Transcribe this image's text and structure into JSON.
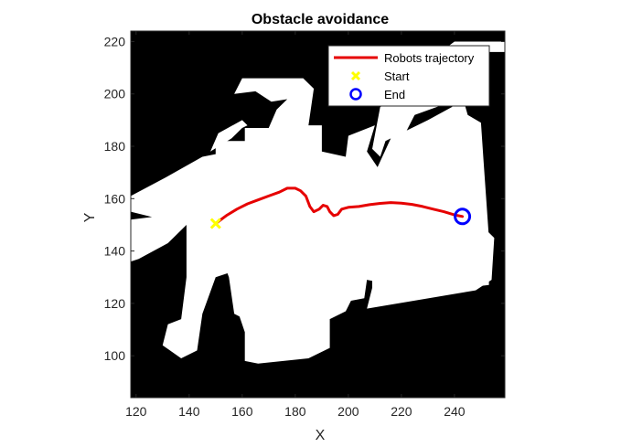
{
  "chart_data": {
    "type": "line",
    "title": "Obstacle avoidance",
    "xlabel": "X",
    "ylabel": "Y",
    "xlim": [
      118,
      259
    ],
    "ylim": [
      84,
      224
    ],
    "xticks": [
      120,
      140,
      160,
      180,
      200,
      220,
      240
    ],
    "yticks": [
      100,
      120,
      140,
      160,
      180,
      200,
      220
    ],
    "grid": false,
    "legend_location": "top-right",
    "background": "occupancy map (black = obstacle, white = free space)",
    "series": [
      {
        "name": "Robots trajectory",
        "kind": "line",
        "color": "#e60000",
        "points": [
          [
            150,
            150.5
          ],
          [
            154,
            153.5
          ],
          [
            158,
            156
          ],
          [
            162,
            158
          ],
          [
            166,
            159.5
          ],
          [
            170,
            161
          ],
          [
            174,
            162.5
          ],
          [
            177,
            164
          ],
          [
            180,
            164
          ],
          [
            182,
            163
          ],
          [
            184,
            161
          ],
          [
            185.5,
            157
          ],
          [
            187,
            155
          ],
          [
            189,
            156
          ],
          [
            190.5,
            157.5
          ],
          [
            192,
            157
          ],
          [
            193,
            155
          ],
          [
            194.5,
            153.5
          ],
          [
            196,
            154
          ],
          [
            197.5,
            156
          ],
          [
            200,
            156.7
          ],
          [
            204,
            157
          ],
          [
            208,
            157.7
          ],
          [
            212,
            158.2
          ],
          [
            216,
            158.5
          ],
          [
            220,
            158.3
          ],
          [
            224,
            157.8
          ],
          [
            228,
            157
          ],
          [
            232,
            156
          ],
          [
            236,
            155
          ],
          [
            240,
            153.8
          ],
          [
            243,
            153.2
          ]
        ]
      },
      {
        "name": "Start",
        "kind": "marker",
        "marker": "x",
        "color": "#ffff00",
        "x": 150,
        "y": 150.5
      },
      {
        "name": "End",
        "kind": "marker",
        "marker": "o",
        "color": "#0000ff",
        "x": 243,
        "y": 153.2
      }
    ],
    "free_space_regions": [
      [
        [
          118,
          161
        ],
        [
          131,
          168
        ],
        [
          145,
          176
        ],
        [
          150,
          177
        ],
        [
          150,
          182
        ],
        [
          161,
          182
        ],
        [
          161,
          187
        ],
        [
          170,
          187
        ],
        [
          173,
          194
        ],
        [
          177,
          198
        ],
        [
          171,
          197
        ],
        [
          165,
          201
        ],
        [
          157,
          200
        ],
        [
          160,
          206
        ],
        [
          183,
          206
        ],
        [
          187,
          202
        ],
        [
          185,
          188
        ],
        [
          190,
          188
        ],
        [
          190,
          178
        ],
        [
          199,
          176
        ],
        [
          200,
          184
        ],
        [
          210,
          188
        ],
        [
          207,
          178
        ],
        [
          211,
          172
        ],
        [
          216,
          183
        ],
        [
          222,
          186
        ],
        [
          225,
          192
        ],
        [
          236,
          196
        ],
        [
          245,
          199
        ],
        [
          243,
          210
        ],
        [
          243,
          216
        ],
        [
          259,
          216
        ],
        [
          259,
          220
        ],
        [
          240,
          220
        ],
        [
          236,
          217
        ],
        [
          228,
          206
        ],
        [
          220,
          200
        ],
        [
          212,
          195
        ],
        [
          209,
          179
        ],
        [
          212,
          176
        ],
        [
          214,
          182
        ],
        [
          222,
          186
        ],
        [
          230,
          190
        ],
        [
          239,
          195
        ],
        [
          243,
          199
        ],
        [
          245,
          192
        ],
        [
          250,
          189
        ],
        [
          251,
          174
        ],
        [
          253,
          145
        ],
        [
          253,
          127
        ],
        [
          236,
          125
        ],
        [
          226,
          128
        ],
        [
          212,
          128
        ],
        [
          207,
          129
        ],
        [
          206,
          122
        ],
        [
          201,
          121
        ],
        [
          199,
          117
        ],
        [
          193,
          114
        ],
        [
          193,
          103
        ],
        [
          185,
          99
        ],
        [
          166,
          97
        ],
        [
          161,
          98
        ],
        [
          161,
          109
        ],
        [
          159,
          115
        ],
        [
          157,
          116
        ],
        [
          155,
          130
        ],
        [
          152,
          138
        ],
        [
          150,
          139
        ],
        [
          150,
          130
        ],
        [
          145,
          116
        ],
        [
          143,
          102
        ],
        [
          137,
          99
        ],
        [
          130,
          104
        ],
        [
          132,
          112
        ],
        [
          137,
          114
        ],
        [
          139,
          130
        ],
        [
          139,
          150
        ],
        [
          132,
          143
        ],
        [
          121,
          137
        ],
        [
          118,
          136
        ],
        [
          118,
          152
        ],
        [
          126,
          153
        ],
        [
          118,
          155
        ]
      ],
      [
        [
          166,
          163
        ],
        [
          238,
          163
        ],
        [
          241,
          152
        ],
        [
          230,
          147
        ],
        [
          212,
          147
        ],
        [
          205,
          145
        ],
        [
          192,
          148
        ],
        [
          185,
          149
        ],
        [
          179,
          150
        ],
        [
          178,
          156
        ],
        [
          173,
          154
        ],
        [
          165,
          157
        ],
        [
          160,
          160
        ]
      ],
      [
        [
          207,
          118
        ],
        [
          248,
          125
        ],
        [
          254,
          129
        ],
        [
          255,
          145
        ],
        [
          250,
          150
        ],
        [
          244,
          150
        ],
        [
          229,
          145
        ],
        [
          213,
          139
        ],
        [
          209,
          140
        ],
        [
          209,
          126
        ]
      ],
      [
        [
          150,
          130
        ],
        [
          159,
          133
        ],
        [
          156,
          146
        ],
        [
          150,
          147
        ],
        [
          146,
          137
        ]
      ],
      [
        [
          148,
          178
        ],
        [
          156,
          183
        ],
        [
          160,
          187
        ],
        [
          162,
          188
        ],
        [
          160,
          190
        ],
        [
          151,
          185
        ]
      ]
    ]
  }
}
